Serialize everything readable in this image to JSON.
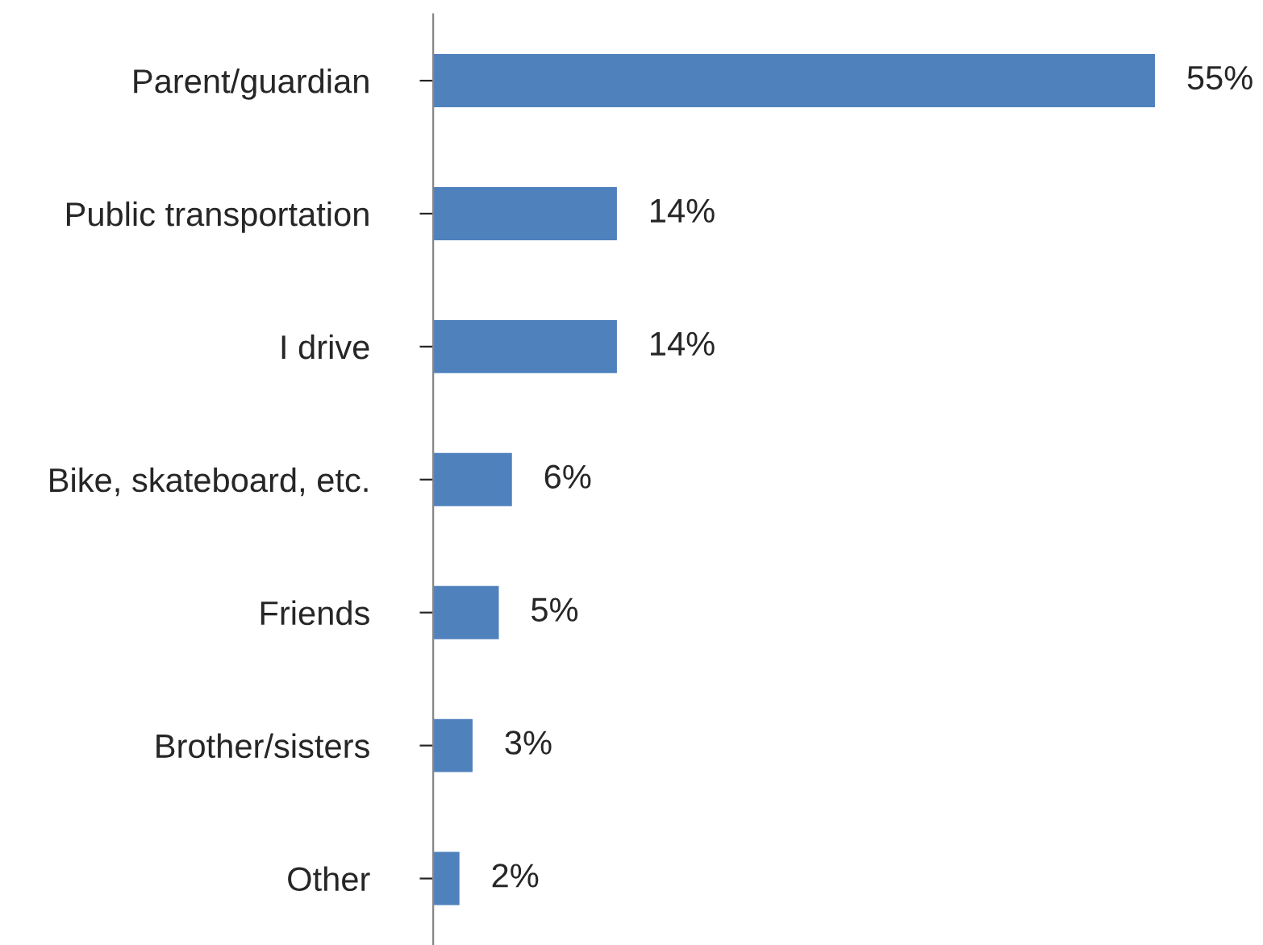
{
  "chart_data": {
    "type": "bar",
    "orientation": "horizontal",
    "categories": [
      "Parent/guardian",
      "Public transportation",
      "I drive",
      "Bike, skateboard, etc.",
      "Friends",
      "Brother/sisters",
      "Other"
    ],
    "values": [
      55,
      14,
      14,
      6,
      5,
      3,
      2
    ],
    "value_labels": [
      "55%",
      "14%",
      "14%",
      "6%",
      "5%",
      "3%",
      "2%"
    ],
    "color": "#4f81bd",
    "grid": false,
    "legend": false
  }
}
